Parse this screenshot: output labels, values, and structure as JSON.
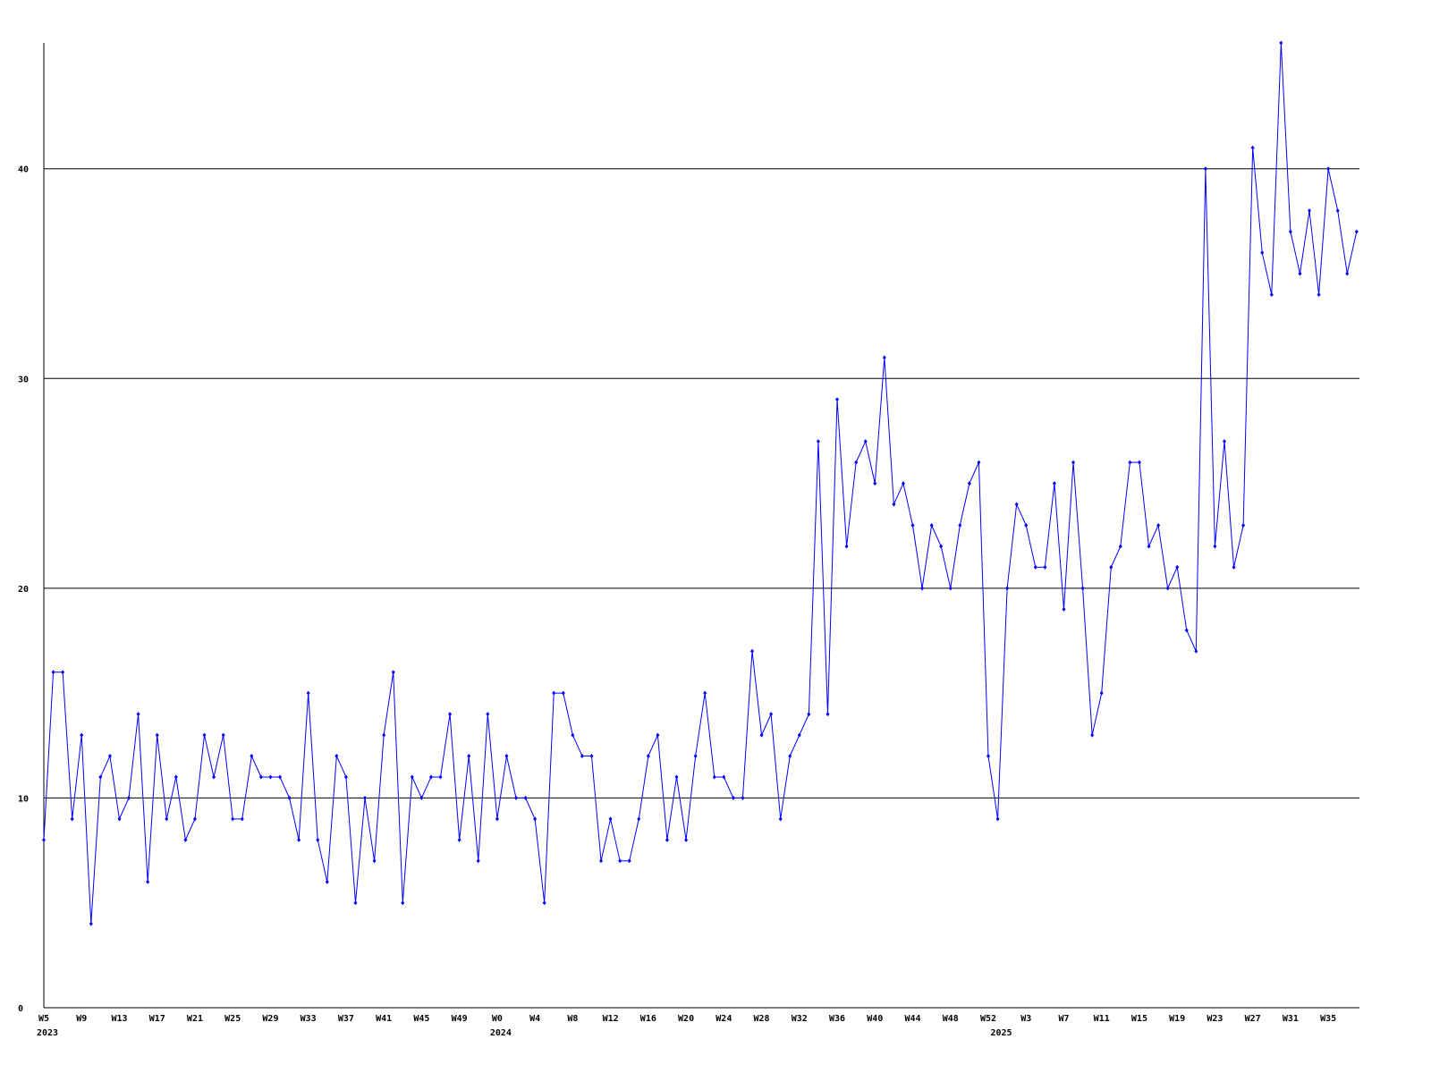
{
  "chart_data": {
    "type": "line",
    "categories": [
      "W5",
      null,
      null,
      null,
      "W9",
      null,
      null,
      null,
      "W13",
      null,
      null,
      null,
      "W17",
      null,
      null,
      null,
      "W21",
      null,
      null,
      null,
      "W25",
      null,
      null,
      null,
      "W29",
      null,
      null,
      null,
      "W33",
      null,
      null,
      null,
      "W37",
      null,
      null,
      null,
      "W41",
      null,
      null,
      null,
      "W45",
      null,
      null,
      null,
      "W49",
      null,
      null,
      null,
      "W0",
      null,
      null,
      null,
      "W4",
      null,
      null,
      null,
      "W8",
      null,
      null,
      null,
      "W12",
      null,
      null,
      null,
      "W16",
      null,
      null,
      null,
      "W20",
      null,
      null,
      null,
      "W24",
      null,
      null,
      null,
      "W28",
      null,
      null,
      null,
      "W32",
      null,
      null,
      null,
      "W36",
      null,
      null,
      null,
      "W40",
      null,
      null,
      null,
      "W44",
      null,
      null,
      null,
      "W48",
      null,
      null,
      null,
      "W52",
      null,
      null,
      null,
      "W3",
      null,
      null,
      null,
      "W7",
      null,
      null,
      null,
      "W11",
      null,
      null,
      null,
      "W15",
      null,
      null,
      null,
      "W19",
      null,
      null,
      null,
      "W23",
      null,
      null,
      null,
      "W27",
      null,
      null,
      null,
      "W31",
      null,
      null,
      null,
      "W35",
      null,
      null,
      null
    ],
    "years": [
      "2023",
      null,
      null,
      null,
      null,
      null,
      null,
      null,
      null,
      null,
      null,
      null,
      null,
      null,
      null,
      null,
      null,
      null,
      null,
      null,
      null,
      null,
      null,
      null,
      null,
      null,
      null,
      null,
      null,
      null,
      null,
      null,
      null,
      null,
      null,
      null,
      null,
      null,
      null,
      null,
      null,
      null,
      null,
      null,
      null,
      null,
      null,
      null,
      "2024",
      null,
      null,
      null,
      null,
      null,
      null,
      null,
      null,
      null,
      null,
      null,
      null,
      null,
      null,
      null,
      null,
      null,
      null,
      null,
      null,
      null,
      null,
      null,
      null,
      null,
      null,
      null,
      null,
      null,
      null,
      null,
      null,
      null,
      null,
      null,
      null,
      null,
      null,
      null,
      null,
      null,
      null,
      null,
      null,
      null,
      null,
      null,
      null,
      null,
      null,
      null,
      null,
      "2025",
      null,
      null,
      null,
      null,
      null,
      null,
      null,
      null,
      null,
      null,
      null,
      null,
      null,
      null,
      null,
      null,
      null,
      null,
      null,
      null,
      null,
      null,
      null,
      null,
      null,
      null,
      null,
      null,
      null,
      null,
      null,
      null,
      null,
      null,
      null,
      null,
      null,
      null
    ],
    "series": [
      {
        "color": "#0000ff",
        "values": [
          8,
          16,
          16,
          9,
          13,
          4,
          11,
          12,
          9,
          10,
          14,
          6,
          13,
          9,
          11,
          8,
          9,
          13,
          11,
          13,
          9,
          9,
          12,
          11,
          11,
          11,
          10,
          8,
          15,
          8,
          6,
          12,
          11,
          5,
          10,
          7,
          13,
          16,
          5,
          11,
          10,
          11,
          11,
          14,
          8,
          12,
          7,
          14,
          9,
          12,
          10,
          10,
          9,
          5,
          15,
          15,
          13,
          12,
          12,
          7,
          9,
          7,
          7,
          9,
          12,
          13,
          8,
          11,
          8,
          12,
          15,
          11,
          11,
          10,
          10,
          17,
          13,
          14,
          9,
          12,
          13,
          14,
          27,
          14,
          29,
          22,
          26,
          27,
          25,
          31,
          24,
          25,
          23,
          20,
          23,
          22,
          20,
          23,
          25,
          26,
          12,
          9,
          20,
          24,
          23,
          21,
          21,
          25,
          19,
          26,
          20,
          13,
          15,
          21,
          22,
          26,
          26,
          22,
          23,
          20,
          21,
          18,
          17,
          40,
          22,
          27,
          21,
          23,
          41,
          36,
          34,
          46,
          37,
          35,
          38,
          34,
          40,
          38,
          35,
          37
        ]
      }
    ],
    "ylim": [
      0,
      46
    ],
    "yticks": [
      0,
      10,
      20,
      30,
      40
    ],
    "grid": true
  }
}
